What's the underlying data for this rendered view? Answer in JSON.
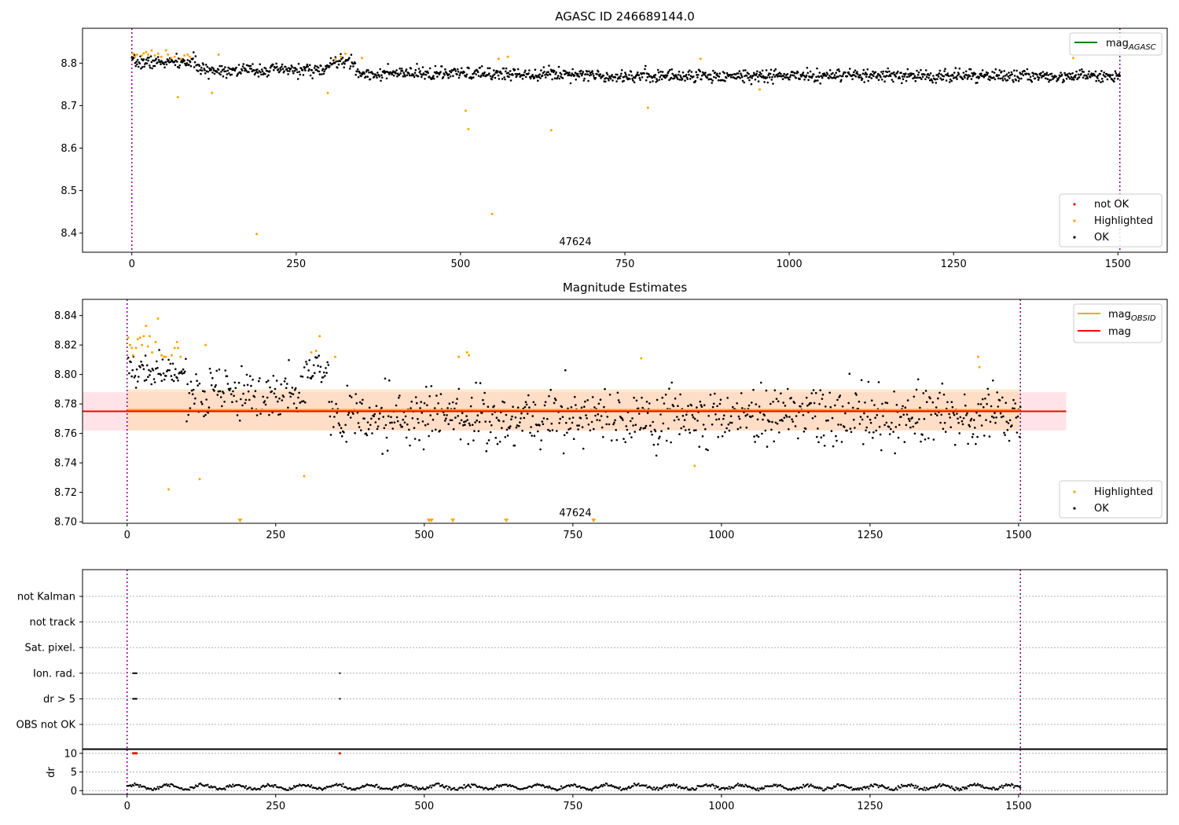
{
  "figure": {
    "title": "AGASC ID 246689144.0"
  },
  "colors": {
    "ok": "#000000",
    "highlighted": "#ffa500",
    "not_ok": "#ff0000",
    "mag_agasc_line": "#008000",
    "mag_obsid_line": "#ffa500",
    "mag_line": "#ff0000",
    "mag_band": "#ffc0cb",
    "obsid_band": "#ffd8b0",
    "obs_boundary": "#800080"
  },
  "chart_data": [
    {
      "id": "agasc",
      "type": "scatter",
      "title": "AGASC ID 246689144.0",
      "xlim": [
        -75,
        1575
      ],
      "ylim": [
        8.355,
        8.882
      ],
      "x_ticks": [
        0,
        250,
        500,
        750,
        1000,
        1250,
        1500
      ],
      "y_ticks": [
        8.4,
        8.5,
        8.6,
        8.7,
        8.8
      ],
      "y_tick_labels": [
        "8.4",
        "8.5",
        "8.6",
        "8.7",
        "8.8"
      ],
      "obs_boundaries": [
        0,
        1503
      ],
      "obsid_label": {
        "text": "47624",
        "x": 752,
        "y": 8.37
      },
      "legend_lines": [
        {
          "name": "mag",
          "sub": "AGASC",
          "color": "#008000"
        }
      ],
      "legend_points": [
        {
          "name": "not OK",
          "color": "#ff0000"
        },
        {
          "name": "Highlighted",
          "color": "#ffa500"
        },
        {
          "name": "OK",
          "color": "#000000"
        }
      ],
      "ok_model": {
        "n": 1505,
        "x0": 0,
        "x1": 1503
      },
      "highlighted": [
        [
          2,
          8.822
        ],
        [
          5,
          8.815
        ],
        [
          8,
          8.82
        ],
        [
          15,
          8.818
        ],
        [
          18,
          8.823
        ],
        [
          22,
          8.826
        ],
        [
          25,
          8.82
        ],
        [
          30,
          8.83
        ],
        [
          35,
          8.818
        ],
        [
          40,
          8.822
        ],
        [
          45,
          8.815
        ],
        [
          52,
          8.83
        ],
        [
          55,
          8.82
        ],
        [
          60,
          8.812
        ],
        [
          65,
          8.815
        ],
        [
          70,
          8.72
        ],
        [
          75,
          8.81
        ],
        [
          80,
          8.818
        ],
        [
          85,
          8.82
        ],
        [
          88,
          8.815
        ],
        [
          122,
          8.73
        ],
        [
          132,
          8.82
        ],
        [
          298,
          8.73
        ],
        [
          310,
          8.81
        ],
        [
          318,
          8.815
        ],
        [
          325,
          8.822
        ],
        [
          350,
          8.812
        ],
        [
          508,
          8.688
        ],
        [
          512,
          8.645
        ],
        [
          548,
          8.445
        ],
        [
          558,
          8.81
        ],
        [
          572,
          8.815
        ],
        [
          190,
          8.398
        ],
        [
          638,
          8.642
        ],
        [
          785,
          8.695
        ],
        [
          865,
          8.81
        ],
        [
          955,
          8.738
        ],
        [
          1432,
          8.812
        ]
      ]
    },
    {
      "id": "mag_estimates",
      "type": "scatter",
      "title": "Magnitude Estimates",
      "xlim": [
        -75,
        1750
      ],
      "ylim": [
        8.699,
        8.851
      ],
      "x_ticks": [
        0,
        250,
        500,
        750,
        1000,
        1250,
        1500
      ],
      "y_ticks": [
        8.7,
        8.72,
        8.74,
        8.76,
        8.78,
        8.8,
        8.82,
        8.84
      ],
      "y_tick_labels": [
        "8.70",
        "8.72",
        "8.74",
        "8.76",
        "8.78",
        "8.80",
        "8.82",
        "8.84"
      ],
      "obs_boundaries": [
        0,
        1503
      ],
      "obsid_label": {
        "text": "47624",
        "x": 752,
        "y": 8.7025
      },
      "mag": 8.775,
      "mag_band": [
        8.762,
        8.788
      ],
      "mag_band_x": [
        -75,
        1580
      ],
      "mag_obsid": 8.776,
      "obsid_band": [
        8.762,
        8.79
      ],
      "legend_lines": [
        {
          "name": "mag",
          "sub": "OBSID",
          "color": "#ffa500"
        },
        {
          "name": "mag",
          "sub": "",
          "color": "#ff0000"
        }
      ],
      "legend_points": [
        {
          "name": "Highlighted",
          "color": "#ffa500"
        },
        {
          "name": "OK",
          "color": "#000000"
        }
      ],
      "ok_model": {
        "n": 1040,
        "x0": 2,
        "x1": 1503
      },
      "highlighted": [
        [
          2,
          8.825
        ],
        [
          5,
          8.82
        ],
        [
          8,
          8.818
        ],
        [
          10,
          8.813
        ],
        [
          15,
          8.818
        ],
        [
          18,
          8.824
        ],
        [
          22,
          8.825
        ],
        [
          25,
          8.82
        ],
        [
          28,
          8.826
        ],
        [
          32,
          8.833
        ],
        [
          35,
          8.819
        ],
        [
          38,
          8.826
        ],
        [
          42,
          8.815
        ],
        [
          48,
          8.822
        ],
        [
          52,
          8.838
        ],
        [
          58,
          8.813
        ],
        [
          62,
          8.812
        ],
        [
          65,
          8.812
        ],
        [
          70,
          8.722
        ],
        [
          75,
          8.813
        ],
        [
          80,
          8.818
        ],
        [
          84,
          8.822
        ],
        [
          86,
          8.818
        ],
        [
          90,
          8.812
        ],
        [
          122,
          8.729
        ],
        [
          132,
          8.82
        ],
        [
          298,
          8.731
        ],
        [
          310,
          8.815
        ],
        [
          318,
          8.816
        ],
        [
          324,
          8.826
        ],
        [
          350,
          8.812
        ],
        [
          558,
          8.812
        ],
        [
          572,
          8.815
        ],
        [
          575,
          8.813
        ],
        [
          865,
          8.811
        ],
        [
          955,
          8.738
        ],
        [
          1432,
          8.812
        ],
        [
          1434,
          8.805
        ]
      ],
      "clipped_markers": [
        190,
        508,
        512,
        548,
        638,
        785
      ]
    },
    {
      "id": "flags",
      "type": "scatter",
      "xlim": [
        -75,
        1750
      ],
      "categories": [
        "not Kalman",
        "not track",
        "Sat. pixel.",
        "Ion. rad.",
        "dr > 5",
        "OBS not OK"
      ],
      "obs_boundaries": [
        0,
        1503
      ],
      "points": [
        {
          "flag": "Ion. rad.",
          "x": [
            10,
            12,
            14,
            16
          ],
          "color": "#000000"
        },
        {
          "flag": "Ion. rad.",
          "x": [
            358
          ],
          "color": "#000000"
        },
        {
          "flag": "dr > 5",
          "x": [
            10,
            12,
            14,
            16
          ],
          "color": "#000000"
        },
        {
          "flag": "dr > 5",
          "x": [
            358
          ],
          "color": "#000000"
        }
      ]
    },
    {
      "id": "dr",
      "type": "scatter",
      "ylabel": "dr",
      "xlim": [
        -75,
        1750
      ],
      "ylim": [
        -1,
        11
      ],
      "x_ticks": [
        0,
        250,
        500,
        750,
        1000,
        1250,
        1500
      ],
      "y_ticks": [
        0,
        5,
        10
      ],
      "y_tick_labels": [
        "0",
        "5",
        "10"
      ],
      "obs_boundaries": [
        0,
        1503
      ],
      "ok_model": {
        "n": 820,
        "x0": 0,
        "x1": 1503
      },
      "outliers": [
        [
          10,
          10.0
        ],
        [
          12,
          10.0
        ],
        [
          14,
          10.0
        ],
        [
          16,
          10.0
        ],
        [
          358,
          10.0
        ]
      ]
    }
  ]
}
